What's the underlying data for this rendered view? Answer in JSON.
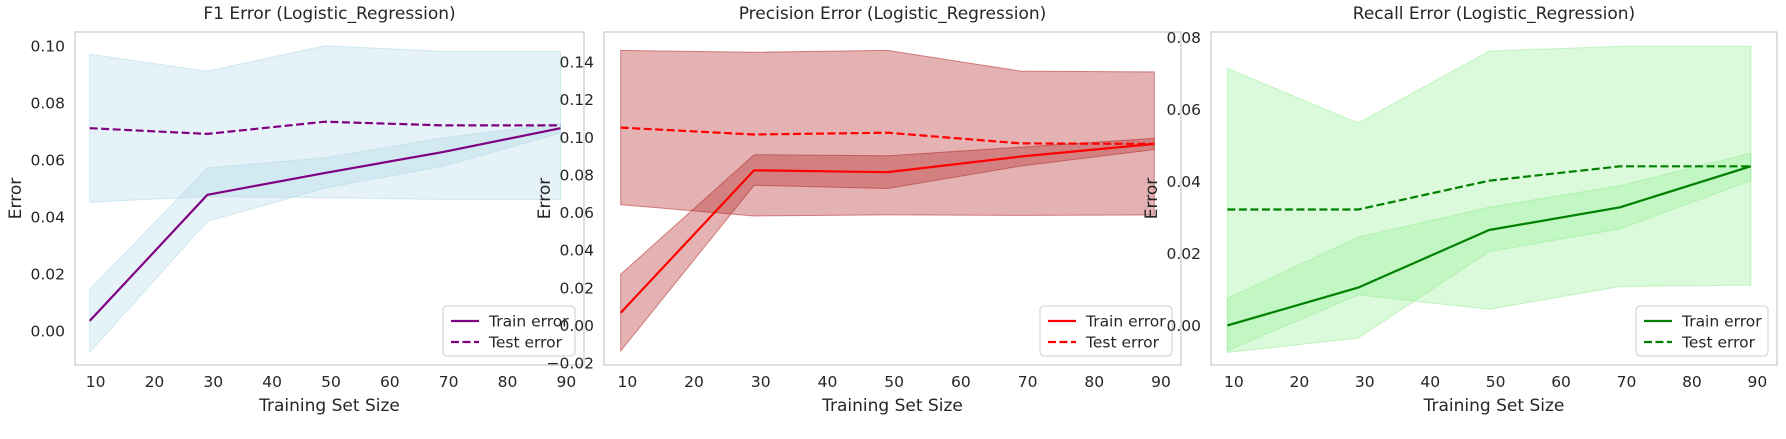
{
  "chart_data": [
    {
      "type": "line",
      "title": "F1 Error (Logistic_Regression)",
      "xlabel": "Training Set Size",
      "ylabel": "Error",
      "xlim": [
        6.5,
        93
      ],
      "ylim": [
        -0.012,
        0.105
      ],
      "xticks": [
        10,
        20,
        30,
        40,
        50,
        60,
        70,
        80,
        90
      ],
      "yticks": [
        0.0,
        0.02,
        0.04,
        0.06,
        0.08,
        0.1
      ],
      "ytick_labels": [
        "0.00",
        "0.02",
        "0.04",
        "0.06",
        "0.08",
        "0.10"
      ],
      "grid": false,
      "legend": "lower-right",
      "x": [
        9,
        29,
        49,
        69,
        89
      ],
      "series": [
        {
          "name": "Train error",
          "style": "solid",
          "color": "#800080",
          "values": [
            0.0035,
            0.0478,
            0.0555,
            0.0628,
            0.0712
          ],
          "band_lower": [
            -0.0075,
            0.0385,
            0.0502,
            0.0578,
            0.0695
          ],
          "band_upper": [
            0.0145,
            0.0572,
            0.0608,
            0.0678,
            0.0729
          ],
          "band_color": "#add8e6"
        },
        {
          "name": "Test error",
          "style": "dashed",
          "color": "#800080",
          "values": [
            0.0712,
            0.0692,
            0.0735,
            0.0722,
            0.0722
          ],
          "band_lower": [
            0.0452,
            0.0472,
            0.0468,
            0.0462,
            0.0462
          ],
          "band_upper": [
            0.0972,
            0.0912,
            0.1002,
            0.0982,
            0.0982
          ],
          "band_color": "#add8e6"
        }
      ]
    },
    {
      "type": "line",
      "title": "Precision Error (Logistic_Regression)",
      "xlabel": "Training Set Size",
      "ylabel": "Error",
      "xlim": [
        6.5,
        93
      ],
      "ylim": [
        -0.021,
        0.156
      ],
      "xticks": [
        10,
        20,
        30,
        40,
        50,
        60,
        70,
        80,
        90
      ],
      "yticks": [
        -0.02,
        0.0,
        0.02,
        0.04,
        0.06,
        0.08,
        0.1,
        0.12,
        0.14
      ],
      "ytick_labels": [
        "−0.02",
        "0.00",
        "0.02",
        "0.04",
        "0.06",
        "0.08",
        "0.10",
        "0.12",
        "0.14"
      ],
      "grid": false,
      "legend": "lower-right",
      "x": [
        9,
        29,
        49,
        69,
        89
      ],
      "series": [
        {
          "name": "Train error",
          "style": "solid",
          "color": "#ff0000",
          "values": [
            0.0068,
            0.0825,
            0.0815,
            0.0898,
            0.0965
          ],
          "band_lower": [
            -0.0135,
            0.0745,
            0.0728,
            0.0848,
            0.0935
          ],
          "band_upper": [
            0.0272,
            0.0908,
            0.0902,
            0.0948,
            0.0995
          ],
          "band_color": "#b22222"
        },
        {
          "name": "Test error",
          "style": "dashed",
          "color": "#ff0000",
          "values": [
            0.1052,
            0.1015,
            0.1025,
            0.0968,
            0.0965
          ],
          "band_lower": [
            0.0642,
            0.0582,
            0.0588,
            0.0585,
            0.0588
          ],
          "band_upper": [
            0.1462,
            0.1452,
            0.1462,
            0.1352,
            0.1348
          ],
          "band_color": "#b22222"
        }
      ]
    },
    {
      "type": "line",
      "title": "Recall Error (Logistic_Regression)",
      "xlabel": "Training Set Size",
      "ylabel": "Error",
      "xlim": [
        6.5,
        93
      ],
      "ylim": [
        -0.011,
        0.0815
      ],
      "xticks": [
        10,
        20,
        30,
        40,
        50,
        60,
        70,
        80,
        90
      ],
      "yticks": [
        0.0,
        0.02,
        0.04,
        0.06,
        0.08
      ],
      "ytick_labels": [
        "0.00",
        "0.02",
        "0.04",
        "0.06",
        "0.08"
      ],
      "grid": false,
      "legend": "lower-right",
      "x": [
        9,
        29,
        49,
        69,
        89
      ],
      "series": [
        {
          "name": "Train error",
          "style": "solid",
          "color": "#008000",
          "values": [
            0.0,
            0.0105,
            0.0265,
            0.0328,
            0.0442
          ],
          "band_lower": [
            -0.0075,
            -0.0035,
            0.0205,
            0.0268,
            0.0402
          ],
          "band_upper": [
            0.0075,
            0.0245,
            0.0328,
            0.0388,
            0.0478
          ],
          "band_color": "#90ee90"
        },
        {
          "name": "Test error",
          "style": "dashed",
          "color": "#008000",
          "values": [
            0.0322,
            0.0322,
            0.0402,
            0.0442,
            0.0442
          ],
          "band_lower": [
            -0.007,
            0.0085,
            0.0045,
            0.0108,
            0.0112
          ],
          "band_upper": [
            0.0714,
            0.0562,
            0.0762,
            0.0775,
            0.0775
          ],
          "band_color": "#90ee90"
        }
      ]
    }
  ]
}
